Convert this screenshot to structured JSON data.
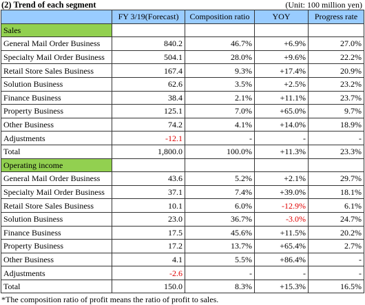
{
  "title": "(2) Trend of each segment",
  "unit": "(Unit: 100 million yen)",
  "table": {
    "header": [
      "",
      "FY 3/19(Forecast)",
      "Composition ratio",
      "YOY",
      "Progress rate"
    ],
    "sections": [
      {
        "title": "Sales",
        "rows": [
          [
            "General Mail Order Business",
            "840.2",
            "46.7%",
            "+6.9%",
            "27.0%"
          ],
          [
            "Specialty Mail Order Business",
            "504.1",
            "28.0%",
            "+9.6%",
            "22.2%"
          ],
          [
            "Retail Store Sales Business",
            "167.4",
            "9.3%",
            "+17.4%",
            "20.9%"
          ],
          [
            "Solution Business",
            "62.6",
            "3.5%",
            "+2.5%",
            "23.2%"
          ],
          [
            "Finance Business",
            "38.4",
            "2.1%",
            "+11.1%",
            "23.7%"
          ],
          [
            "Property Business",
            "125.1",
            "7.0%",
            "+65.0%",
            "9.7%"
          ],
          [
            "Other Business",
            "74.2",
            "4.1%",
            "+14.0%",
            "18.9%"
          ],
          [
            "Adjustments",
            "-12.1",
            "-",
            "-",
            "-"
          ],
          [
            "Total",
            "1,800.0",
            "100.0%",
            "+11.3%",
            "23.3%"
          ]
        ]
      },
      {
        "title": "Operating income",
        "rows": [
          [
            "General Mail Order Business",
            "43.6",
            "5.2%",
            "+2.1%",
            "29.7%"
          ],
          [
            "Specialty Mail Order Business",
            "37.1",
            "7.4%",
            "+39.0%",
            "18.1%"
          ],
          [
            "Retail Store Sales Business",
            "10.1",
            "6.0%",
            "-12.9%",
            "6.1%"
          ],
          [
            "Solution Business",
            "23.0",
            "36.7%",
            "-3.0%",
            "24.7%"
          ],
          [
            "Finance Business",
            "17.5",
            "45.6%",
            "+11.5%",
            "20.2%"
          ],
          [
            "Property Business",
            "17.2",
            "13.7%",
            "+65.4%",
            "2.7%"
          ],
          [
            "Other Business",
            "4.1",
            "5.5%",
            "+86.4%",
            "-"
          ],
          [
            "Adjustments",
            "-2.6",
            "-",
            "-",
            "-"
          ],
          [
            "Total",
            "150.0",
            "8.3%",
            "+15.3%",
            "16.5%"
          ]
        ]
      }
    ]
  },
  "footnote": "*The composition ratio of profit means the ratio of profit to sales."
}
